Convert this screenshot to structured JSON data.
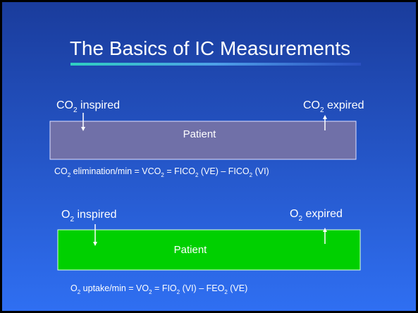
{
  "title": "The Basics of IC Measurements",
  "co2": {
    "inspired": [
      "CO",
      "2",
      " inspired"
    ],
    "expired": [
      "CO",
      "2",
      " expired"
    ],
    "box": "Patient",
    "formula": [
      "CO",
      "2",
      " elimination/min = VCO",
      "2",
      " = FICO",
      "2",
      " (VE) – FICO",
      "2",
      " (VI)"
    ]
  },
  "o2": {
    "inspired": [
      "O",
      "2",
      " inspired"
    ],
    "expired": [
      "O",
      "2",
      " expired"
    ],
    "box": "Patient",
    "formula": [
      "O",
      "2",
      " uptake/min = VO",
      "2",
      " = FIO",
      "2",
      " (VI) – FEO",
      "2",
      " (VE)"
    ]
  }
}
